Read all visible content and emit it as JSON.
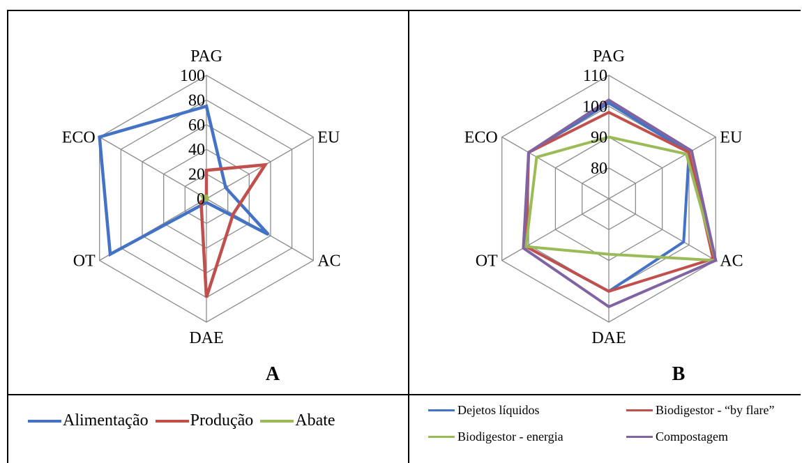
{
  "legend_a": [
    {
      "label": "Alimentação",
      "color": "#4472c4"
    },
    {
      "label": "Produção",
      "color": "#c0504d"
    },
    {
      "label": "Abate",
      "color": "#9bbb59"
    }
  ],
  "legend_b": [
    {
      "label": "Dejetos líquidos",
      "color": "#4472c4"
    },
    {
      "label": "Biodigestor - “by flare”",
      "color": "#c0504d"
    },
    {
      "label": "Biodigestor - energia",
      "color": "#9bbb59"
    },
    {
      "label": "Compostagem",
      "color": "#8064a2"
    }
  ],
  "chart_data": [
    {
      "type": "radar",
      "panel_label": "A",
      "axes": [
        "PAG",
        "EU",
        "AC",
        "DAE",
        "OT",
        "ECO"
      ],
      "rlim": [
        0,
        100
      ],
      "ticks": [
        0,
        20,
        40,
        60,
        80,
        100
      ],
      "tick_labels": [
        "0",
        "20",
        "40",
        "60",
        "80",
        "100"
      ],
      "series": [
        {
          "name": "Alimentação",
          "color": "#4472c4",
          "values": [
            75,
            18,
            58,
            3,
            90,
            100
          ]
        },
        {
          "name": "Produção",
          "color": "#c0504d",
          "values": [
            23,
            55,
            25,
            80,
            5,
            0
          ]
        },
        {
          "name": "Abate",
          "color": "#9bbb59",
          "values": [
            2,
            1,
            1,
            1,
            2,
            4
          ]
        }
      ]
    },
    {
      "type": "radar",
      "panel_label": "B",
      "axes": [
        "PAG",
        "EU",
        "AC",
        "DAE",
        "OT",
        "ECO"
      ],
      "rlim": [
        70,
        110
      ],
      "ticks": [
        70,
        80,
        90,
        100,
        110
      ],
      "tick_labels": [
        "",
        "80",
        "90",
        "100",
        "110"
      ],
      "series": [
        {
          "name": "Dejetos líquidos",
          "color": "#4472c4",
          "values": [
            101,
            100,
            98,
            100,
            101,
            100
          ]
        },
        {
          "name": "Biodigestor - “by flare”",
          "color": "#c0504d",
          "values": [
            98,
            100,
            109,
            100,
            101,
            100
          ]
        },
        {
          "name": "Biodigestor - energia",
          "color": "#9bbb59",
          "values": [
            90,
            99,
            110,
            88,
            101,
            97
          ]
        },
        {
          "name": "Compostagem",
          "color": "#8064a2",
          "values": [
            102,
            101,
            110,
            105,
            102,
            100
          ]
        }
      ]
    }
  ]
}
